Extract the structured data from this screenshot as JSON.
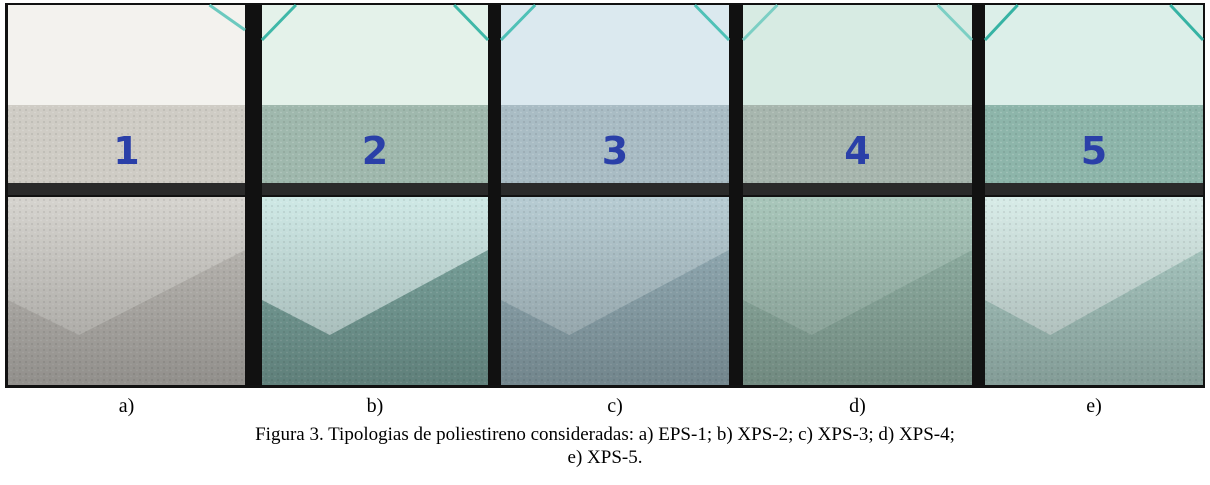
{
  "figure": {
    "panels": [
      {
        "label": "a)",
        "mark": "1"
      },
      {
        "label": "b)",
        "mark": "2"
      },
      {
        "label": "c)",
        "mark": "3"
      },
      {
        "label": "d)",
        "mark": "4"
      },
      {
        "label": "e)",
        "mark": "5"
      }
    ],
    "caption": [
      "Figura 3. Tipologias de poliestireno consideradas: a) EPS-1; b) XPS-2; c) XPS-3; d) XPS-4;",
      "e) XPS-5."
    ]
  }
}
